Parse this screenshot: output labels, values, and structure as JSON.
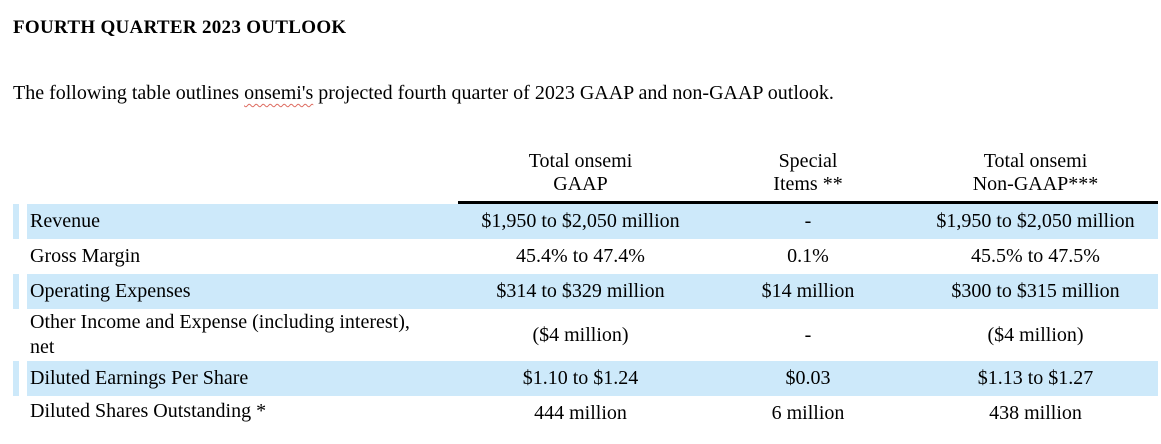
{
  "document": {
    "title": "FOURTH QUARTER 2023 OUTLOOK",
    "intro": {
      "before": "The following table outlines ",
      "spellchecked_word": "onsemi's",
      "after": " projected fourth quarter of 2023 GAAP and non-GAAP outlook."
    }
  },
  "table": {
    "column_headers": [
      {
        "line1": "Total onsemi",
        "line2": "GAAP"
      },
      {
        "line1": "Special",
        "line2": "Items **"
      },
      {
        "line1": "Total onsemi",
        "line2": "Non-GAAP***"
      }
    ],
    "rows": [
      {
        "label": "Revenue",
        "gaap": "$1,950 to $2,050 million",
        "special_items": "-",
        "non_gaap": "$1,950 to $2,050 million",
        "shaded": true
      },
      {
        "label": "Gross Margin",
        "gaap": "45.4% to 47.4%",
        "special_items": "0.1%",
        "non_gaap": "45.5% to 47.5%",
        "shaded": false
      },
      {
        "label": "Operating Expenses",
        "gaap": "$314 to $329 million",
        "special_items": "$14 million",
        "non_gaap": "$300 to $315 million",
        "shaded": true
      },
      {
        "label": "Other Income and Expense (including interest),\nnet",
        "gaap": "($4 million)",
        "special_items": "-",
        "non_gaap": "($4 million)",
        "shaded": false
      },
      {
        "label": "Diluted Earnings Per Share",
        "gaap": "$1.10 to $1.24",
        "special_items": "$0.03",
        "non_gaap": "$1.13 to $1.27",
        "shaded": true
      },
      {
        "label": "Diluted Shares Outstanding *",
        "gaap": "444 million",
        "special_items": "6 million",
        "non_gaap": "438 million",
        "shaded": false
      }
    ],
    "colors": {
      "row_shade": "#cde9fa",
      "header_rule": "#000000",
      "spellcheck_underline": "#dd6a5f"
    }
  }
}
